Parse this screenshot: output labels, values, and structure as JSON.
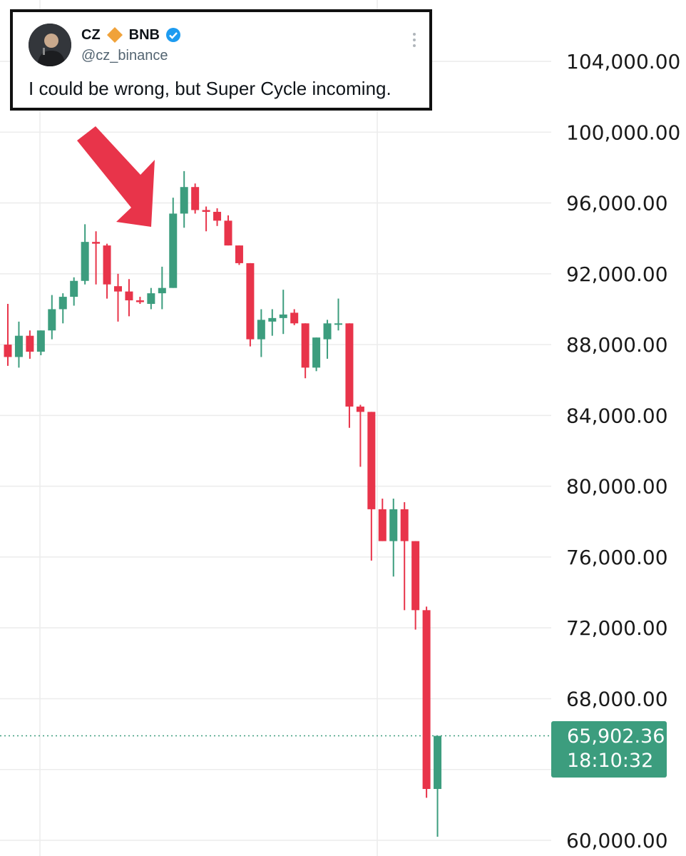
{
  "tweet": {
    "name": "CZ",
    "badge_label": "BNB",
    "handle": "@cz_binance",
    "text": "I could be wrong, but Super Cycle incoming.",
    "icons": [
      "avatar-photo",
      "diamond-icon",
      "verified-icon",
      "more-vertical-icon"
    ]
  },
  "price_tag": {
    "price": "65,902.36",
    "countdown": "18:10:32",
    "color": "#3c9d7e"
  },
  "colors": {
    "up": "#3c9d7e",
    "down": "#e8344a",
    "arrow": "#e8344a",
    "grid": "#ececec"
  },
  "chart_data": {
    "type": "candlestick",
    "title": "",
    "xlabel": "",
    "ylabel": "",
    "ylim": [
      59800,
      104500
    ],
    "y_ticks": [
      "104,000.00",
      "100,000.00",
      "96,000.00",
      "92,000.00",
      "88,000.00",
      "84,000.00",
      "80,000.00",
      "76,000.00",
      "72,000.00",
      "68,000.00",
      "60,000.00"
    ],
    "y_tick_values": [
      104000,
      100000,
      96000,
      92000,
      88000,
      84000,
      80000,
      76000,
      72000,
      68000,
      60000
    ],
    "last_price": 65902.36,
    "grid": true,
    "annotations": [
      "red arrow pointing at local top"
    ],
    "candles": [
      {
        "o": 88000,
        "h": 90300,
        "l": 86800,
        "c": 87300
      },
      {
        "o": 87300,
        "h": 89300,
        "l": 86700,
        "c": 88500
      },
      {
        "o": 88500,
        "h": 88800,
        "l": 87200,
        "c": 87600
      },
      {
        "o": 87600,
        "h": 88800,
        "l": 87400,
        "c": 88800
      },
      {
        "o": 88800,
        "h": 90800,
        "l": 88300,
        "c": 90000
      },
      {
        "o": 90000,
        "h": 90900,
        "l": 89200,
        "c": 90700
      },
      {
        "o": 90700,
        "h": 91800,
        "l": 90200,
        "c": 91600
      },
      {
        "o": 91600,
        "h": 94800,
        "l": 91400,
        "c": 93800
      },
      {
        "o": 93800,
        "h": 94400,
        "l": 91400,
        "c": 93700
      },
      {
        "o": 93600,
        "h": 93700,
        "l": 90600,
        "c": 91400
      },
      {
        "o": 91300,
        "h": 92000,
        "l": 89300,
        "c": 91000
      },
      {
        "o": 91000,
        "h": 91700,
        "l": 89600,
        "c": 90500
      },
      {
        "o": 90500,
        "h": 90700,
        "l": 90300,
        "c": 90400
      },
      {
        "o": 90300,
        "h": 91200,
        "l": 90000,
        "c": 90900
      },
      {
        "o": 90900,
        "h": 92400,
        "l": 90000,
        "c": 91200
      },
      {
        "o": 91200,
        "h": 96300,
        "l": 91200,
        "c": 95400
      },
      {
        "o": 95400,
        "h": 97800,
        "l": 94600,
        "c": 96900
      },
      {
        "o": 96900,
        "h": 97100,
        "l": 95400,
        "c": 95600
      },
      {
        "o": 95600,
        "h": 95800,
        "l": 94400,
        "c": 95500
      },
      {
        "o": 95500,
        "h": 95700,
        "l": 94700,
        "c": 95000
      },
      {
        "o": 95000,
        "h": 95300,
        "l": 93600,
        "c": 93600
      },
      {
        "o": 93600,
        "h": 93600,
        "l": 92500,
        "c": 92600
      },
      {
        "o": 92600,
        "h": 92600,
        "l": 87900,
        "c": 88300
      },
      {
        "o": 88300,
        "h": 90000,
        "l": 87300,
        "c": 89400
      },
      {
        "o": 89300,
        "h": 90000,
        "l": 88500,
        "c": 89500
      },
      {
        "o": 89500,
        "h": 91100,
        "l": 88600,
        "c": 89700
      },
      {
        "o": 89800,
        "h": 90000,
        "l": 89100,
        "c": 89200
      },
      {
        "o": 89200,
        "h": 89200,
        "l": 86100,
        "c": 86700
      },
      {
        "o": 86700,
        "h": 88400,
        "l": 86500,
        "c": 88400
      },
      {
        "o": 88300,
        "h": 89400,
        "l": 87200,
        "c": 89200
      },
      {
        "o": 89200,
        "h": 90600,
        "l": 88800,
        "c": 89200
      },
      {
        "o": 89200,
        "h": 89200,
        "l": 83300,
        "c": 84500
      },
      {
        "o": 84500,
        "h": 84600,
        "l": 81100,
        "c": 84200
      },
      {
        "o": 84200,
        "h": 84200,
        "l": 75800,
        "c": 78700
      },
      {
        "o": 78700,
        "h": 79300,
        "l": 76900,
        "c": 76900
      },
      {
        "o": 76900,
        "h": 79300,
        "l": 74900,
        "c": 78700
      },
      {
        "o": 78700,
        "h": 79100,
        "l": 73000,
        "c": 76900
      },
      {
        "o": 76900,
        "h": 76900,
        "l": 71900,
        "c": 73000
      },
      {
        "o": 73000,
        "h": 73200,
        "l": 62400,
        "c": 62900
      },
      {
        "o": 62900,
        "h": 65900,
        "l": 60200,
        "c": 65900
      }
    ]
  }
}
